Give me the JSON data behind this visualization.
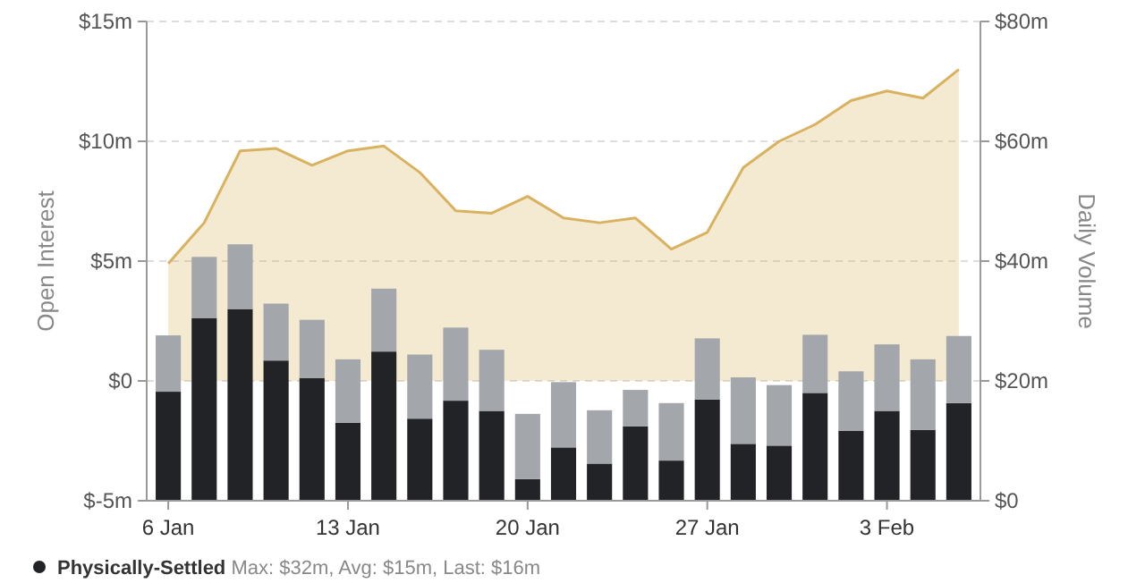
{
  "chart_data": {
    "type": "bar",
    "stacked": true,
    "categories": [
      "6 Jan",
      null,
      null,
      null,
      null,
      "13 Jan",
      null,
      null,
      null,
      null,
      "20 Jan",
      null,
      null,
      null,
      null,
      "27 Jan",
      null,
      null,
      null,
      null,
      "3 Feb",
      null,
      null
    ],
    "series": [
      {
        "name": "Physically-Settled",
        "color": "#222326",
        "axis": "y2",
        "values": [
          18.2,
          30.5,
          32,
          23.4,
          20.5,
          13,
          24.9,
          13.7,
          16.7,
          15,
          3.6,
          8.9,
          6.2,
          12.4,
          6.7,
          16.9,
          9.5,
          9.2,
          18,
          11.7,
          15,
          11.8,
          16.3
        ]
      },
      {
        "color": "#a3a6ab",
        "axis": "y2",
        "values": [
          9.4,
          10.2,
          10.8,
          9.5,
          9.7,
          10.6,
          10.5,
          10.7,
          12.2,
          10.2,
          10.9,
          10.9,
          8.9,
          6.1,
          9.6,
          10.2,
          11.1,
          10.1,
          9.7,
          9.9,
          11.1,
          11.8,
          11.2
        ]
      },
      {
        "type": "area",
        "color": "#d9b25f",
        "axis": "y",
        "values": [
          4.9,
          6.6,
          9.6,
          9.7,
          9,
          9.6,
          9.8,
          8.7,
          7.1,
          7,
          7.7,
          6.8,
          6.6,
          6.8,
          5.5,
          6.2,
          8.9,
          10,
          10.7,
          11.7,
          12.1,
          11.8,
          13
        ]
      }
    ],
    "ylabel": "Open Interest",
    "y2label": "Daily Volume",
    "ylim": [
      -5,
      15
    ],
    "yticks": [
      {
        "value": -5,
        "label": "$-5m"
      },
      {
        "value": 0,
        "label": "$0"
      },
      {
        "value": 5,
        "label": "$5m"
      },
      {
        "value": 10,
        "label": "$10m"
      },
      {
        "value": 15,
        "label": "$15m"
      }
    ],
    "y2lim": [
      0,
      80
    ],
    "y2ticks": [
      {
        "value": 0,
        "label": "$0"
      },
      {
        "value": 20,
        "label": "$20m"
      },
      {
        "value": 40,
        "label": "$40m"
      },
      {
        "value": 60,
        "label": "$60m"
      },
      {
        "value": 80,
        "label": "$80m"
      }
    ],
    "grid": "y",
    "legend": "bottom",
    "annotations": [
      "Max: $32m, Avg: $15m, Last: $16m"
    ]
  }
}
